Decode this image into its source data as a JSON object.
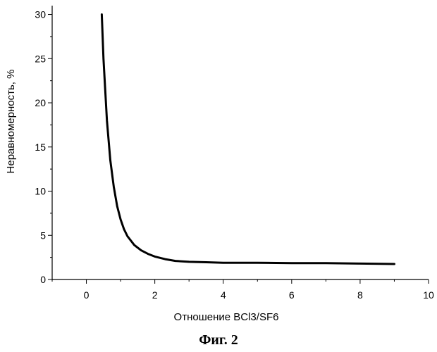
{
  "chart_data": {
    "type": "line",
    "xlabel": "Отношение BCl3/SF6",
    "ylabel": "Неравномерность, %",
    "xlim": [
      -1,
      10
    ],
    "ylim": [
      0,
      31
    ],
    "x_ticks": [
      0,
      2,
      4,
      6,
      8,
      10
    ],
    "y_ticks": [
      0,
      5,
      10,
      15,
      20,
      25,
      30
    ],
    "grid": false,
    "legend": "none",
    "line_color": "#000000",
    "series": [
      {
        "x": [
          0.45,
          0.5,
          0.6,
          0.7,
          0.8,
          0.9,
          1.0,
          1.1,
          1.2,
          1.4,
          1.6,
          1.8,
          2.0,
          2.3,
          2.6,
          3.0,
          3.5,
          4.0,
          5.0,
          6.0,
          7.0,
          8.0,
          9.0
        ],
        "y": [
          30.0,
          25.0,
          18.0,
          13.5,
          10.5,
          8.3,
          6.8,
          5.7,
          4.9,
          3.9,
          3.3,
          2.9,
          2.6,
          2.3,
          2.1,
          2.0,
          1.95,
          1.9,
          1.9,
          1.85,
          1.85,
          1.8,
          1.75
        ]
      }
    ]
  },
  "caption": "Фиг. 2"
}
